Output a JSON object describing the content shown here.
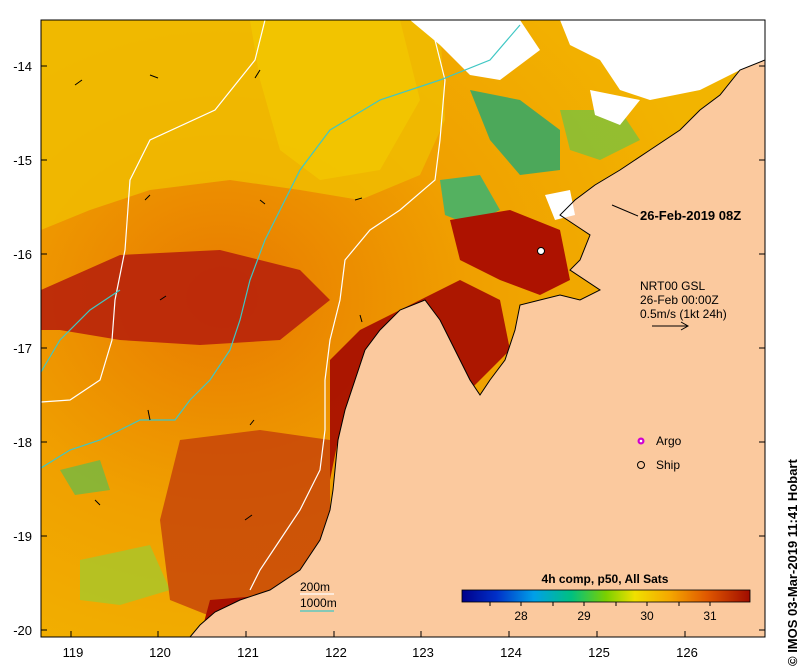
{
  "map": {
    "x_ticks": [
      "119",
      "120",
      "121",
      "122",
      "123",
      "124",
      "125",
      "126"
    ],
    "y_ticks": [
      "-14",
      "-15",
      "-16",
      "-17",
      "-18",
      "-19",
      "-20"
    ],
    "date_label": "26-Feb-2019 08Z",
    "current_source": "NRT00 GSL",
    "current_time": "26-Feb 00:00Z",
    "current_scale": "0.5m/s (1kt 24h)",
    "legend": {
      "argo": "Argo",
      "ship": "Ship",
      "contour_200": "200m",
      "contour_1000": "1000m"
    },
    "colorbar": {
      "title": "4h comp, p50, All Sats",
      "ticks": [
        "28",
        "29",
        "30",
        "31"
      ]
    },
    "credit": "© IMOS 03-Mar-2019 11:41 Hobart",
    "colors": {
      "land": "#fbc99e",
      "sst_hot": "#b01500",
      "sst_warm": "#e07a00",
      "sst_mid": "#f5b800",
      "sst_cool": "#17a85a",
      "contour_200": "#ffffff",
      "contour_1000": "#3fc7c4",
      "argo": "#d000d0"
    }
  }
}
